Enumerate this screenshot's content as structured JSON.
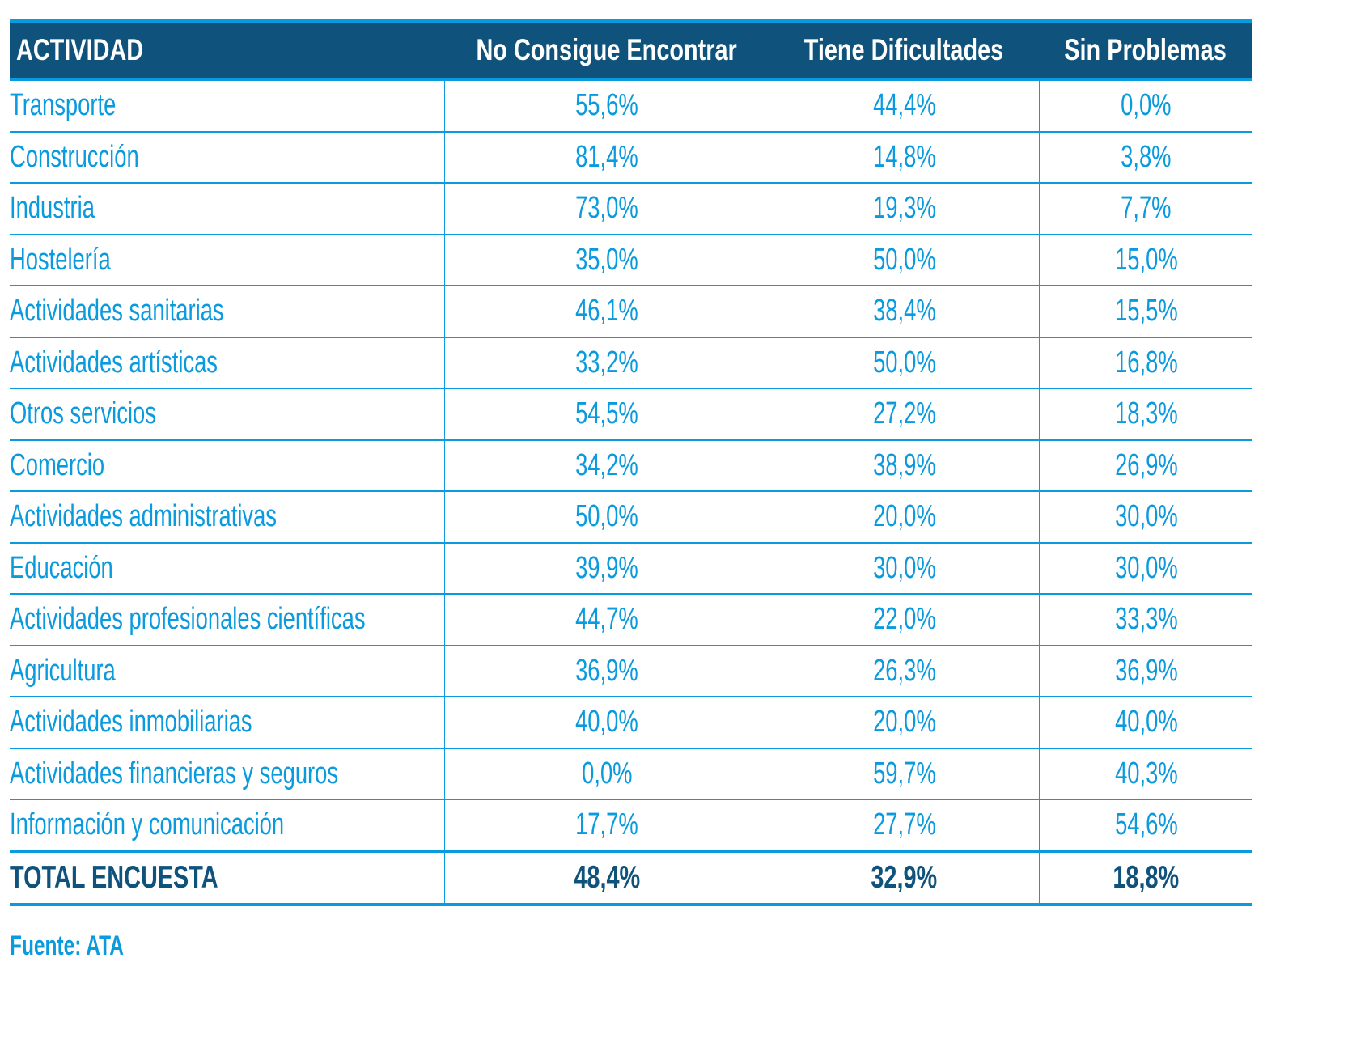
{
  "table": {
    "headers": [
      "ACTIVIDAD",
      "No Consigue Encontrar",
      "Tiene Dificultades",
      "Sin Problemas"
    ],
    "rows": [
      {
        "actividad": "Transporte",
        "no_consigue": "55,6%",
        "dificultades": "44,4%",
        "sin_problemas": "0,0%"
      },
      {
        "actividad": "Construcción",
        "no_consigue": "81,4%",
        "dificultades": "14,8%",
        "sin_problemas": "3,8%"
      },
      {
        "actividad": "Industria",
        "no_consigue": "73,0%",
        "dificultades": "19,3%",
        "sin_problemas": "7,7%"
      },
      {
        "actividad": "Hostelería",
        "no_consigue": "35,0%",
        "dificultades": "50,0%",
        "sin_problemas": "15,0%"
      },
      {
        "actividad": "Actividades sanitarias",
        "no_consigue": "46,1%",
        "dificultades": "38,4%",
        "sin_problemas": "15,5%"
      },
      {
        "actividad": "Actividades artísticas",
        "no_consigue": "33,2%",
        "dificultades": "50,0%",
        "sin_problemas": "16,8%"
      },
      {
        "actividad": "Otros servicios",
        "no_consigue": "54,5%",
        "dificultades": "27,2%",
        "sin_problemas": "18,3%"
      },
      {
        "actividad": "Comercio",
        "no_consigue": "34,2%",
        "dificultades": "38,9%",
        "sin_problemas": "26,9%"
      },
      {
        "actividad": "Actividades administrativas",
        "no_consigue": "50,0%",
        "dificultades": "20,0%",
        "sin_problemas": "30,0%"
      },
      {
        "actividad": "Educación",
        "no_consigue": "39,9%",
        "dificultades": "30,0%",
        "sin_problemas": "30,0%"
      },
      {
        "actividad": "Actividades profesionales científicas",
        "no_consigue": "44,7%",
        "dificultades": "22,0%",
        "sin_problemas": "33,3%"
      },
      {
        "actividad": "Agricultura",
        "no_consigue": "36,9%",
        "dificultades": "26,3%",
        "sin_problemas": "36,9%"
      },
      {
        "actividad": "Actividades inmobiliarias",
        "no_consigue": "40,0%",
        "dificultades": "20,0%",
        "sin_problemas": "40,0%"
      },
      {
        "actividad": "Actividades financieras y seguros",
        "no_consigue": "0,0%",
        "dificultades": "59,7%",
        "sin_problemas": "40,3%"
      },
      {
        "actividad": "Información y comunicación",
        "no_consigue": "17,7%",
        "dificultades": "27,7%",
        "sin_problemas": "54,6%"
      }
    ],
    "total": {
      "actividad": "TOTAL ENCUESTA",
      "no_consigue": "48,4%",
      "dificultades": "32,9%",
      "sin_problemas": "18,8%"
    }
  },
  "source": "Fuente: ATA",
  "colors": {
    "header_bg": "#0f537d",
    "accent": "#0a9ade",
    "total_text": "#0f537d"
  }
}
